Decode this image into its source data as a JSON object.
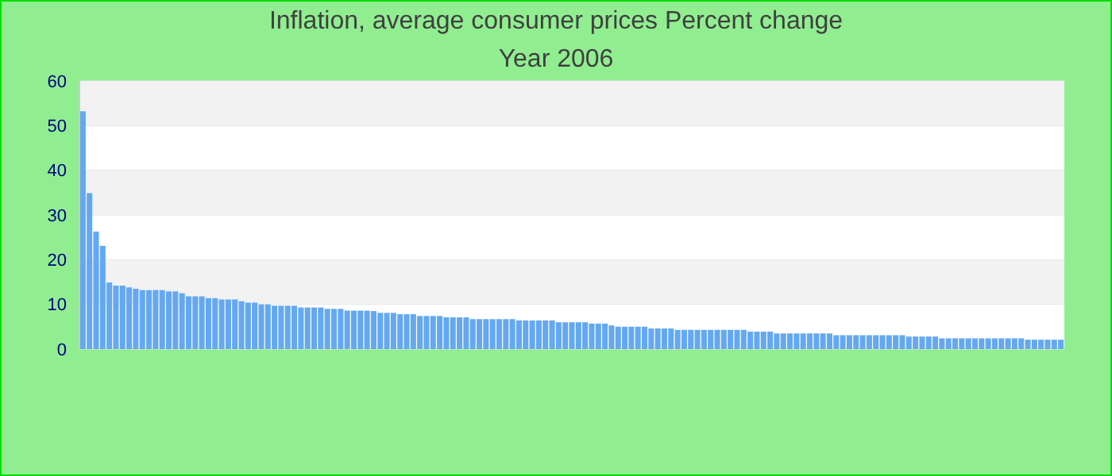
{
  "chart_data": {
    "type": "bar",
    "title": "Inflation, average consumer prices  Percent change",
    "subtitle": "Year 2006",
    "color": "#64a8f0",
    "ylim": [
      0,
      60
    ],
    "yticks": [
      0,
      10,
      20,
      30,
      40,
      50,
      60
    ],
    "grid": "y",
    "categories": [
      null,
      null,
      null,
      null,
      null,
      null,
      null,
      null,
      null,
      null,
      null,
      null,
      null,
      null,
      null,
      null,
      null,
      null,
      null,
      null,
      null,
      null,
      null,
      null,
      null,
      null,
      null,
      null,
      null,
      null,
      null,
      null,
      null,
      null,
      null,
      null,
      null,
      null,
      null,
      null,
      null,
      null,
      null,
      null,
      null,
      null,
      null,
      null,
      null,
      null,
      null,
      null,
      null,
      null,
      null,
      null,
      null,
      null,
      null,
      null,
      null,
      null,
      null,
      null,
      null,
      null,
      null,
      null,
      null,
      null,
      null,
      null,
      null,
      null,
      null,
      null,
      null,
      null,
      null,
      null,
      null,
      null,
      null,
      null,
      null,
      null,
      null,
      null,
      null,
      null,
      null,
      null,
      null,
      null,
      null,
      null,
      null,
      null,
      null,
      null,
      null,
      null,
      null,
      null,
      null,
      null,
      null,
      null,
      null,
      null,
      null,
      null,
      null,
      null,
      null,
      null,
      null,
      null,
      null,
      null,
      null,
      null,
      null,
      null,
      null,
      null,
      null,
      null,
      null,
      null,
      null,
      null,
      null,
      null,
      null,
      null,
      null,
      null,
      null,
      null,
      null,
      null,
      null,
      null,
      null,
      null,
      null,
      null,
      null
    ],
    "values": [
      53.2,
      34.9,
      26.3,
      23.1,
      14.9,
      14.2,
      14.2,
      13.8,
      13.5,
      13.2,
      13.2,
      13.2,
      13.2,
      12.9,
      12.9,
      12.5,
      11.8,
      11.8,
      11.8,
      11.4,
      11.4,
      11.1,
      11.1,
      11.1,
      10.7,
      10.4,
      10.4,
      10.0,
      10.0,
      9.7,
      9.7,
      9.7,
      9.7,
      9.3,
      9.3,
      9.3,
      9.3,
      9.0,
      9.0,
      9.0,
      8.6,
      8.6,
      8.6,
      8.6,
      8.5,
      8.1,
      8.1,
      8.1,
      7.8,
      7.8,
      7.8,
      7.4,
      7.4,
      7.4,
      7.4,
      7.1,
      7.1,
      7.1,
      7.1,
      6.7,
      6.7,
      6.7,
      6.7,
      6.7,
      6.7,
      6.7,
      6.4,
      6.4,
      6.4,
      6.4,
      6.4,
      6.4,
      6.0,
      6.0,
      6.0,
      6.0,
      6.0,
      5.7,
      5.7,
      5.7,
      5.3,
      5.0,
      5.0,
      5.0,
      5.0,
      5.0,
      4.6,
      4.6,
      4.6,
      4.6,
      4.3,
      4.3,
      4.3,
      4.3,
      4.3,
      4.3,
      4.3,
      4.3,
      4.3,
      4.3,
      4.3,
      3.9,
      3.9,
      3.9,
      3.9,
      3.5,
      3.5,
      3.5,
      3.5,
      3.5,
      3.5,
      3.5,
      3.5,
      3.5,
      3.1,
      3.1,
      3.1,
      3.1,
      3.1,
      3.1,
      3.1,
      3.1,
      3.1,
      3.1,
      3.1,
      2.8,
      2.8,
      2.8,
      2.8,
      2.8,
      2.4,
      2.4,
      2.4,
      2.4,
      2.4,
      2.4,
      2.4,
      2.4,
      2.4,
      2.4,
      2.4,
      2.4,
      2.4,
      2.1,
      2.1,
      2.1,
      2.1,
      2.1,
      2.1
    ]
  }
}
